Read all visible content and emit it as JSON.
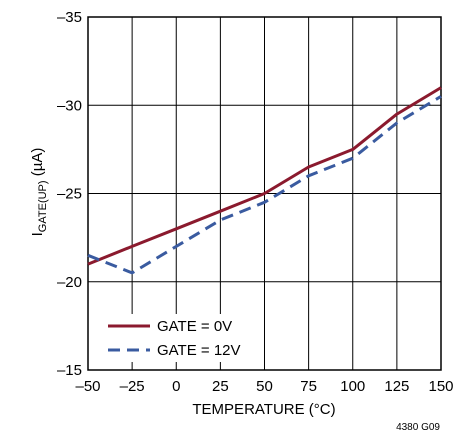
{
  "chart_data": {
    "type": "line",
    "xlabel": "TEMPERATURE (°C)",
    "ylabel_main": "I",
    "ylabel_sub": "GATE(UP)",
    "ylabel_unit": " (µA)",
    "xlim": [
      -50,
      150
    ],
    "ylim": [
      -15,
      -35
    ],
    "x_ticks": [
      -50,
      -25,
      0,
      25,
      50,
      75,
      100,
      125,
      150
    ],
    "x_tick_labels": [
      "–50",
      "–25",
      "0",
      "25",
      "50",
      "75",
      "100",
      "125",
      "150"
    ],
    "y_ticks": [
      -15,
      -20,
      -25,
      -30,
      -35
    ],
    "y_tick_labels": [
      "–15",
      "–20",
      "–25",
      "–30",
      "–35"
    ],
    "grid": true,
    "legend_position": "bottom-left",
    "series": [
      {
        "name": "GATE = 0V",
        "color": "#8b1a2e",
        "style": "solid",
        "x": [
          -50,
          -25,
          0,
          25,
          50,
          75,
          100,
          125,
          150
        ],
        "values": [
          -21.0,
          -22.0,
          -23.0,
          -24.0,
          -25.0,
          -26.5,
          -27.5,
          -29.5,
          -31.0
        ]
      },
      {
        "name": "GATE = 12V",
        "color": "#3a5ba0",
        "style": "dashed",
        "x": [
          -50,
          -25,
          0,
          25,
          50,
          75,
          100,
          125,
          150
        ],
        "values": [
          -21.5,
          -20.5,
          -22.0,
          -23.5,
          -24.5,
          -26.0,
          -27.0,
          -29.0,
          -30.5
        ]
      }
    ],
    "figure_id": "4380 G09"
  }
}
